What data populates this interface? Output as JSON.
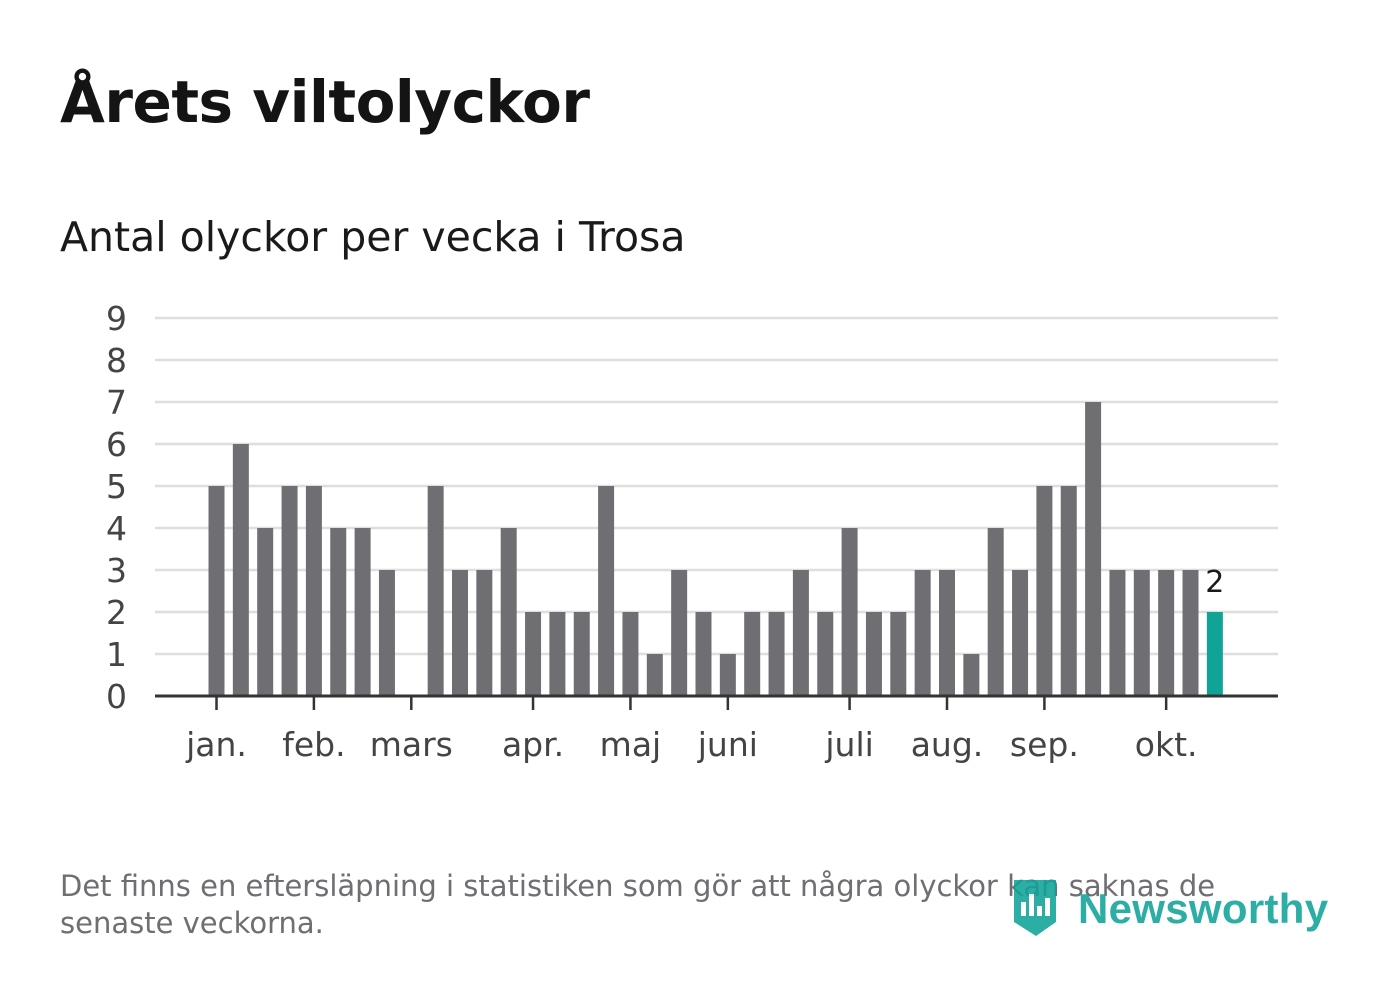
{
  "title": "Årets viltolyckor",
  "subtitle": "Antal olyckor per vecka i Trosa",
  "footnote": "Det finns en eftersläpning i statistiken som gör att några olyckor kan saknas de senaste veckorna.",
  "logo": {
    "text": "Newsworthy",
    "icon": "newsworthy-logo-icon"
  },
  "colors": {
    "bar": "#6f6e73",
    "highlight": "#11a396",
    "grid": "#dedede",
    "axis": "#333333",
    "tick_text": "#444444"
  },
  "chart_data": {
    "type": "bar",
    "title": "Antal olyckor per vecka i Trosa",
    "xlabel": "",
    "ylabel": "",
    "ylim": [
      0,
      9
    ],
    "yticks": [
      0,
      1,
      2,
      3,
      4,
      5,
      6,
      7,
      8,
      9
    ],
    "grid": true,
    "weeks": [
      1,
      2,
      3,
      4,
      5,
      6,
      7,
      8,
      9,
      10,
      11,
      12,
      13,
      14,
      15,
      16,
      17,
      18,
      19,
      20,
      21,
      22,
      23,
      24,
      25,
      26,
      27,
      28,
      29,
      30,
      31,
      32,
      33,
      34,
      35,
      36,
      37,
      38,
      39,
      40,
      41,
      42
    ],
    "values": [
      5,
      6,
      4,
      5,
      5,
      4,
      4,
      3,
      0,
      5,
      3,
      3,
      4,
      2,
      2,
      2,
      5,
      2,
      1,
      3,
      2,
      1,
      2,
      2,
      3,
      2,
      4,
      2,
      2,
      3,
      3,
      1,
      4,
      3,
      5,
      5,
      7,
      3,
      3,
      3,
      3,
      2
    ],
    "highlight_last": true,
    "last_label": "2",
    "month_ticks": [
      {
        "label": "jan.",
        "week": 1
      },
      {
        "label": "feb.",
        "week": 5
      },
      {
        "label": "mars",
        "week": 9
      },
      {
        "label": "apr.",
        "week": 14
      },
      {
        "label": "maj",
        "week": 18
      },
      {
        "label": "juni",
        "week": 22
      },
      {
        "label": "juli",
        "week": 27
      },
      {
        "label": "aug.",
        "week": 31
      },
      {
        "label": "sep.",
        "week": 35
      },
      {
        "label": "okt.",
        "week": 40
      }
    ]
  }
}
